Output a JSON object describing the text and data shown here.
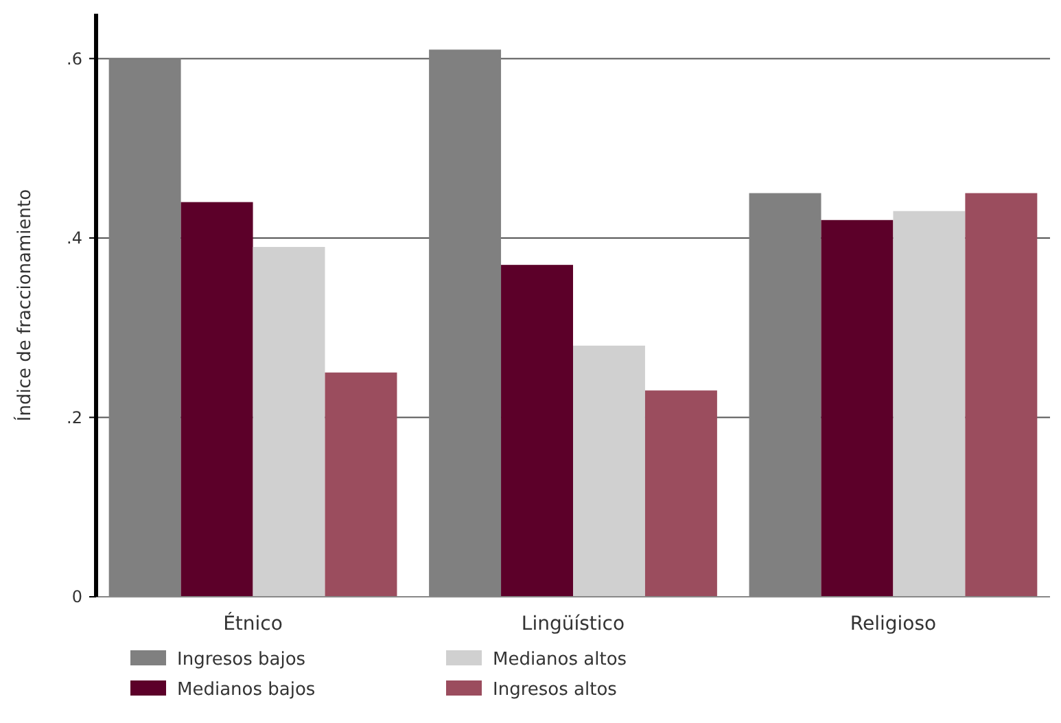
{
  "chart_data": {
    "type": "bar",
    "ylabel": "Índice de fraccionamiento",
    "categories": [
      "Étnico",
      "Lingüístico",
      "Religioso"
    ],
    "series": [
      {
        "name": "Ingresos bajos",
        "color": "#808080",
        "values": [
          0.6,
          0.61,
          0.45
        ]
      },
      {
        "name": "Medianos bajos",
        "color": "#5c0029",
        "values": [
          0.44,
          0.37,
          0.42
        ]
      },
      {
        "name": "Medianos altos",
        "color": "#d0d0d0",
        "values": [
          0.39,
          0.28,
          0.43
        ]
      },
      {
        "name": "Ingresos altos",
        "color": "#9b4d5e",
        "values": [
          0.25,
          0.23,
          0.45
        ]
      }
    ],
    "ylim": [
      0,
      0.65
    ],
    "yticks": [
      0,
      {
        "value": 0.2,
        "label": ".2"
      },
      {
        "value": 0.4,
        "label": ".4"
      },
      {
        "value": 0.6,
        "label": ".6"
      }
    ],
    "grid": "y",
    "legend": "bottom"
  }
}
